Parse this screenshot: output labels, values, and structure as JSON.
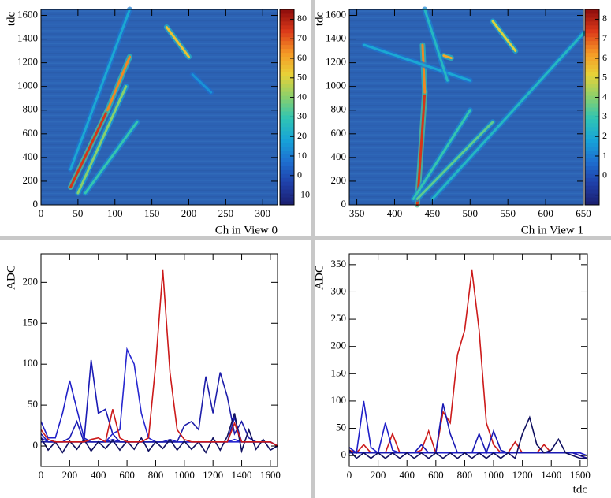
{
  "chart_data": [
    {
      "type": "heatmap",
      "x_label": "Ch in View 0",
      "y_label": "tdc",
      "colormap": "bird",
      "xlim": [
        0,
        320
      ],
      "xticks": [
        0,
        50,
        100,
        150,
        200,
        250,
        300
      ],
      "ylim": [
        0,
        1650
      ],
      "yticks": [
        0,
        200,
        400,
        600,
        800,
        1000,
        1200,
        1400,
        1600
      ],
      "zlim": [
        -15,
        85
      ],
      "zticks": [
        -10,
        0,
        10,
        20,
        30,
        40,
        50,
        60,
        70,
        80
      ],
      "tracks": [
        [
          40,
          150,
          90,
          800,
          75
        ],
        [
          90,
          800,
          120,
          1250,
          65
        ],
        [
          50,
          100,
          115,
          1000,
          40
        ],
        [
          60,
          100,
          130,
          700,
          30
        ],
        [
          40,
          300,
          120,
          1650,
          20
        ],
        [
          170,
          1500,
          200,
          1250,
          55
        ],
        [
          205,
          1100,
          230,
          950,
          15
        ]
      ]
    },
    {
      "type": "heatmap",
      "x_label": "Ch in View 1",
      "y_label": "tdc",
      "colormap": "bird",
      "xlim": [
        340,
        650
      ],
      "xticks": [
        350,
        400,
        450,
        500,
        550,
        600,
        650
      ],
      "ylim": [
        0,
        1650
      ],
      "yticks": [
        0,
        200,
        400,
        600,
        800,
        1000,
        1200,
        1400,
        1600
      ],
      "zlim": [
        -1.5,
        8.5
      ],
      "zticks": [
        {
          "value": -1,
          "label": "-"
        },
        0,
        1,
        2,
        3,
        4,
        5,
        6,
        7,
        8
      ],
      "tracks": [
        [
          430,
          0,
          440,
          950,
          7.5
        ],
        [
          437,
          1350,
          440,
          950,
          6.5
        ],
        [
          425,
          50,
          500,
          800,
          3
        ],
        [
          430,
          50,
          530,
          700,
          3.5
        ],
        [
          450,
          50,
          650,
          1450,
          2.5
        ],
        [
          360,
          1350,
          500,
          1050,
          2
        ],
        [
          530,
          1550,
          560,
          1300,
          5
        ],
        [
          465,
          1260,
          475,
          1240,
          6
        ],
        [
          440,
          1650,
          470,
          1050,
          2.5
        ]
      ]
    },
    {
      "type": "line",
      "y_label": "ADC",
      "xlim": [
        0,
        1650
      ],
      "xticks": [
        0,
        200,
        400,
        600,
        800,
        1000,
        1200,
        1400,
        1600
      ],
      "ylim": [
        -25,
        235
      ],
      "yticks": [
        0,
        50,
        100,
        150,
        200
      ],
      "x": [
        0,
        50,
        100,
        150,
        200,
        250,
        300,
        350,
        400,
        450,
        500,
        550,
        600,
        650,
        700,
        750,
        800,
        850,
        900,
        950,
        1000,
        1050,
        1100,
        1150,
        1200,
        1250,
        1300,
        1350,
        1400,
        1450,
        1500,
        1550,
        1600,
        1650
      ],
      "series": [
        {
          "color": "#2020c8",
          "values": [
            30,
            10,
            10,
            40,
            80,
            45,
            10,
            5,
            5,
            5,
            8,
            5,
            5,
            5,
            5,
            5,
            5,
            5,
            8,
            5,
            5,
            5,
            5,
            5,
            5,
            5,
            5,
            8,
            5,
            5,
            5,
            5,
            5,
            0
          ]
        },
        {
          "color": "#1a1ab4",
          "values": [
            15,
            5,
            5,
            5,
            10,
            30,
            5,
            105,
            40,
            45,
            15,
            5,
            5,
            5,
            5,
            5,
            5,
            5,
            5,
            5,
            5,
            5,
            5,
            5,
            5,
            5,
            5,
            35,
            5,
            5,
            5,
            5,
            5,
            0
          ]
        },
        {
          "color": "#2828d0",
          "values": [
            10,
            5,
            5,
            5,
            5,
            5,
            5,
            5,
            5,
            5,
            15,
            20,
            118,
            100,
            40,
            10,
            5,
            5,
            5,
            5,
            5,
            5,
            5,
            5,
            5,
            5,
            5,
            5,
            5,
            5,
            5,
            5,
            5,
            0
          ]
        },
        {
          "color": "#1e1eaa",
          "values": [
            5,
            5,
            5,
            5,
            5,
            5,
            5,
            5,
            5,
            5,
            5,
            5,
            5,
            5,
            5,
            5,
            5,
            5,
            5,
            5,
            25,
            30,
            20,
            85,
            40,
            90,
            60,
            15,
            30,
            10,
            5,
            5,
            5,
            0
          ]
        },
        {
          "color": "#101060",
          "values": [
            10,
            -5,
            5,
            -8,
            6,
            -4,
            8,
            -6,
            5,
            -3,
            7,
            -5,
            6,
            -4,
            10,
            -6,
            5,
            -3,
            8,
            -5,
            6,
            -4,
            5,
            -8,
            10,
            -5,
            12,
            40,
            -6,
            20,
            -4,
            8,
            -5,
            0
          ]
        },
        {
          "color": "#cc1a1a",
          "values": [
            20,
            8,
            5,
            5,
            5,
            5,
            5,
            8,
            10,
            5,
            45,
            10,
            5,
            5,
            5,
            10,
            100,
            215,
            90,
            20,
            8,
            5,
            5,
            5,
            5,
            5,
            5,
            28,
            5,
            5,
            5,
            5,
            5,
            0
          ]
        }
      ]
    },
    {
      "type": "line",
      "y_label": "ADC",
      "x_label": "tdc",
      "xlim": [
        0,
        1650
      ],
      "xticks": [
        0,
        200,
        400,
        600,
        800,
        1000,
        1200,
        1400,
        1600
      ],
      "ylim": [
        -20,
        370
      ],
      "yticks": [
        0,
        50,
        100,
        150,
        200,
        250,
        300,
        350
      ],
      "x": [
        0,
        50,
        100,
        150,
        200,
        250,
        300,
        350,
        400,
        450,
        500,
        550,
        600,
        650,
        700,
        750,
        800,
        850,
        900,
        950,
        1000,
        1050,
        1100,
        1150,
        1200,
        1250,
        1300,
        1350,
        1400,
        1450,
        1500,
        1550,
        1600,
        1650
      ],
      "series": [
        {
          "color": "#cc1a1a",
          "values": [
            10,
            5,
            20,
            5,
            5,
            5,
            40,
            5,
            5,
            5,
            10,
            45,
            5,
            80,
            60,
            185,
            230,
            340,
            230,
            60,
            20,
            5,
            5,
            25,
            5,
            5,
            5,
            20,
            5,
            5,
            5,
            5,
            0,
            -5
          ]
        },
        {
          "color": "#2020c8",
          "values": [
            15,
            5,
            100,
            15,
            5,
            60,
            10,
            5,
            5,
            5,
            5,
            5,
            5,
            5,
            5,
            5,
            5,
            5,
            5,
            5,
            5,
            5,
            5,
            5,
            5,
            5,
            5,
            5,
            5,
            5,
            5,
            5,
            5,
            0
          ]
        },
        {
          "color": "#1a1ab4",
          "values": [
            5,
            5,
            5,
            5,
            5,
            5,
            5,
            5,
            5,
            5,
            20,
            5,
            5,
            95,
            40,
            5,
            5,
            5,
            40,
            5,
            45,
            10,
            5,
            5,
            5,
            5,
            5,
            5,
            5,
            5,
            5,
            5,
            0,
            -5
          ]
        },
        {
          "color": "#101060",
          "values": [
            10,
            -5,
            5,
            -5,
            5,
            -5,
            5,
            -5,
            5,
            -5,
            5,
            -5,
            5,
            -5,
            5,
            -5,
            5,
            -5,
            5,
            -5,
            5,
            -5,
            5,
            -5,
            40,
            70,
            20,
            5,
            10,
            30,
            5,
            0,
            -5,
            -5
          ]
        }
      ]
    }
  ]
}
